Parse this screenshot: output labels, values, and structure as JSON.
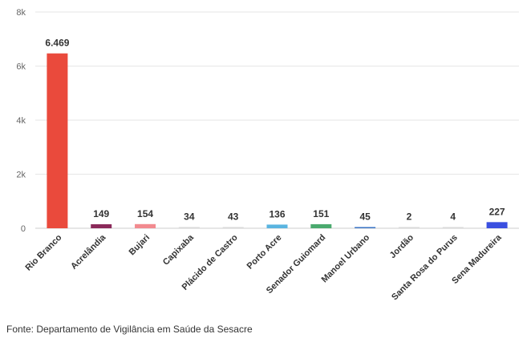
{
  "chart_data": {
    "type": "bar",
    "categories": [
      "Rio Branco",
      "Acrelândia",
      "Bujari",
      "Capixaba",
      "Plácido de Castro",
      "Porto Acre",
      "Senador Guiomard",
      "Manoel Urbano",
      "Jordão",
      "Santa Rosa do Purus",
      "Sena Madureira"
    ],
    "values": [
      6469,
      149,
      154,
      34,
      43,
      136,
      151,
      45,
      2,
      4,
      227
    ],
    "value_labels": [
      "6.469",
      "149",
      "154",
      "34",
      "43",
      "136",
      "151",
      "45",
      "2",
      "4",
      "227"
    ],
    "colors": [
      "#ea4a3c",
      "#8b2a5a",
      "#f28a8f",
      "#d9d9d9",
      "#d9d9d9",
      "#5ab4e0",
      "#4aaa6e",
      "#3a74c4",
      "#d9d9d9",
      "#d9d9d9",
      "#3a4fe0"
    ],
    "yticks": [
      0,
      2000,
      4000,
      6000,
      8000
    ],
    "ytick_labels": [
      "0",
      "2k",
      "4k",
      "6k",
      "8k"
    ],
    "ylim": [
      0,
      8000
    ],
    "xlabel": "",
    "ylabel": "",
    "title": "",
    "grid": true,
    "gridline_color": "#e6e6e6"
  },
  "source": "Fonte: Departamento de Vigilância em Saúde da Sesacre"
}
